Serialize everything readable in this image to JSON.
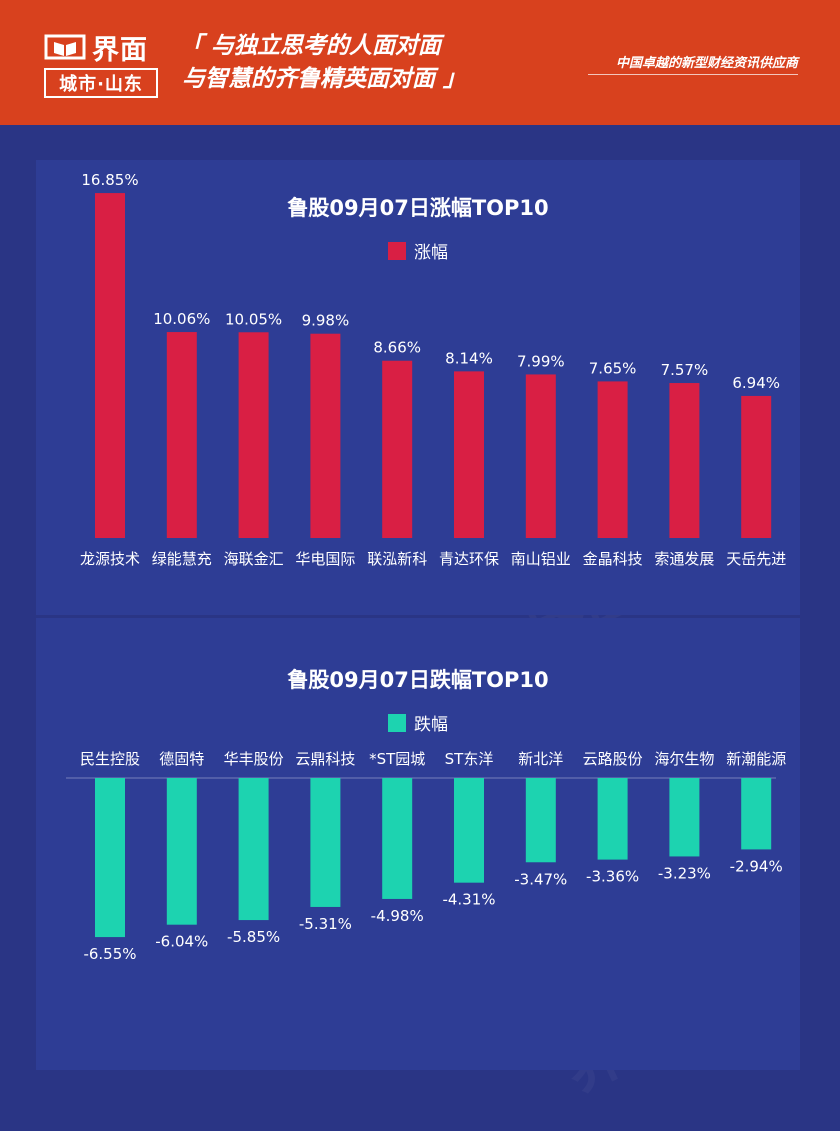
{
  "header": {
    "brand": "界面",
    "brand_sub": "城市·山东",
    "slogan_line1": "「 与独立思考的人面对面",
    "slogan_line2": "与智慧的齐鲁精英面对面 」",
    "tagline": "中国卓越的新型财经资讯供应商",
    "color": "#d8411e"
  },
  "chart_data": [
    {
      "type": "bar",
      "title": "鲁股09月07日涨幅TOP10",
      "legend": "涨幅",
      "color": "#d91f44",
      "categories": [
        "龙源技术",
        "绿能慧充",
        "海联金汇",
        "华电国际",
        "联泓新科",
        "青达环保",
        "南山铝业",
        "金晶科技",
        "索通发展",
        "天岳先进"
      ],
      "values": [
        16.85,
        10.06,
        10.05,
        9.98,
        8.66,
        8.14,
        7.99,
        7.65,
        7.57,
        6.94
      ],
      "labels": [
        "16.85%",
        "10.06%",
        "10.05%",
        "9.98%",
        "8.66%",
        "8.14%",
        "7.99%",
        "7.65%",
        "7.57%",
        "6.94%"
      ],
      "ylim": [
        0,
        17
      ]
    },
    {
      "type": "bar",
      "title": "鲁股09月07日跌幅TOP10",
      "legend": "跌幅",
      "color": "#1dd3b0",
      "categories": [
        "民生控股",
        "德固特",
        "华丰股份",
        "云鼎科技",
        "*ST园城",
        "ST东洋",
        "新北洋",
        "云路股份",
        "海尔生物",
        "新潮能源"
      ],
      "values": [
        -6.55,
        -6.04,
        -5.85,
        -5.31,
        -4.98,
        -4.31,
        -3.47,
        -3.36,
        -3.23,
        -2.94
      ],
      "labels": [
        "-6.55%",
        "-6.04%",
        "-5.85%",
        "-5.31%",
        "-4.98%",
        "-4.31%",
        "-3.47%",
        "-3.36%",
        "-3.23%",
        "-2.94%"
      ],
      "ylim": [
        -7,
        0
      ]
    }
  ]
}
